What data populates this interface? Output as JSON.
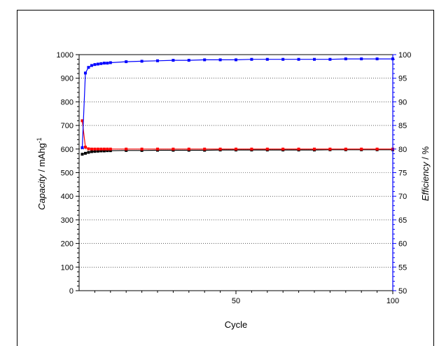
{
  "chart_data": {
    "type": "scatter",
    "title": "",
    "xlabel": "Cycle",
    "ylabel_left": {
      "italic": "Capacity",
      "rest": " / mAhg",
      "sup": "-1"
    },
    "ylabel_right": {
      "italic": "Efficiency",
      "rest": " / %"
    },
    "xlim": [
      0,
      100
    ],
    "ylim_left": [
      0,
      1000
    ],
    "ylim_right": [
      50,
      100
    ],
    "x_ticks": [
      "50",
      "100"
    ],
    "y_ticks_left": [
      "0",
      "100",
      "200",
      "300",
      "400",
      "500",
      "600",
      "700",
      "800",
      "900",
      "1000"
    ],
    "y_ticks_right": [
      "50",
      "55",
      "60",
      "65",
      "70",
      "75",
      "80",
      "85",
      "90",
      "95",
      "100"
    ],
    "grid": "horizontal dotted",
    "series": [
      {
        "axis": "left",
        "color": "#000000",
        "x": [
          1,
          2,
          3,
          4,
          5,
          6,
          7,
          8,
          9,
          10,
          15,
          20,
          25,
          30,
          35,
          40,
          45,
          50,
          55,
          60,
          65,
          70,
          75,
          80,
          85,
          90,
          95,
          100
        ],
        "y": [
          578,
          582,
          586,
          589,
          590,
          591,
          592,
          592,
          593,
          593,
          594,
          594,
          595,
          595,
          595,
          595,
          596,
          596,
          596,
          596,
          596,
          596,
          596,
          597,
          597,
          597,
          597,
          597
        ]
      },
      {
        "axis": "left",
        "color": "#ff0000",
        "x": [
          1,
          2,
          3,
          4,
          5,
          6,
          7,
          8,
          9,
          10,
          15,
          20,
          25,
          30,
          35,
          40,
          45,
          50,
          55,
          60,
          65,
          70,
          75,
          80,
          85,
          90,
          95,
          100
        ],
        "y": [
          720,
          608,
          601,
          600,
          600,
          600,
          600,
          600,
          600,
          600,
          600,
          600,
          600,
          600,
          600,
          600,
          600,
          600,
          600,
          600,
          600,
          600,
          600,
          600,
          600,
          600,
          600,
          600
        ]
      },
      {
        "axis": "right",
        "color": "#0000ff",
        "x": [
          1,
          2,
          3,
          4,
          5,
          6,
          7,
          8,
          9,
          10,
          15,
          20,
          25,
          30,
          35,
          40,
          45,
          50,
          55,
          60,
          65,
          70,
          75,
          80,
          85,
          90,
          95,
          100
        ],
        "y": [
          80.3,
          96.1,
          97.3,
          97.7,
          97.9,
          98.0,
          98.1,
          98.2,
          98.2,
          98.3,
          98.5,
          98.6,
          98.7,
          98.8,
          98.8,
          98.9,
          98.9,
          98.9,
          99.0,
          99.0,
          99.0,
          99.0,
          99.0,
          99.0,
          99.1,
          99.1,
          99.1,
          99.1
        ]
      }
    ]
  }
}
